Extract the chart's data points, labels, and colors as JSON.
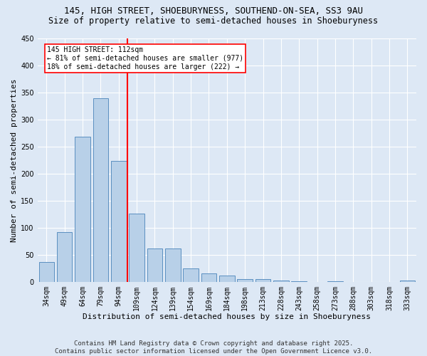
{
  "title_line1": "145, HIGH STREET, SHOEBURYNESS, SOUTHEND-ON-SEA, SS3 9AU",
  "title_line2": "Size of property relative to semi-detached houses in Shoeburyness",
  "xlabel": "Distribution of semi-detached houses by size in Shoeburyness",
  "ylabel": "Number of semi-detached properties",
  "categories": [
    "34sqm",
    "49sqm",
    "64sqm",
    "79sqm",
    "94sqm",
    "109sqm",
    "124sqm",
    "139sqm",
    "154sqm",
    "169sqm",
    "184sqm",
    "198sqm",
    "213sqm",
    "228sqm",
    "243sqm",
    "258sqm",
    "273sqm",
    "288sqm",
    "303sqm",
    "318sqm",
    "333sqm"
  ],
  "values": [
    37,
    92,
    268,
    340,
    224,
    126,
    62,
    62,
    25,
    16,
    11,
    5,
    5,
    2,
    1,
    0,
    1,
    0,
    0,
    0,
    2
  ],
  "bar_color": "#b8d0e8",
  "bar_edge_color": "#5a8fc0",
  "marker_bin_index": 5,
  "marker_label_line1": "145 HIGH STREET: 112sqm",
  "marker_label_line2": "← 81% of semi-detached houses are smaller (977)",
  "marker_label_line3": "18% of semi-detached houses are larger (222) →",
  "marker_color": "red",
  "ylim": [
    0,
    450
  ],
  "yticks": [
    0,
    50,
    100,
    150,
    200,
    250,
    300,
    350,
    400,
    450
  ],
  "bg_color": "#dde8f5",
  "grid_color": "#ffffff",
  "footer_line1": "Contains HM Land Registry data © Crown copyright and database right 2025.",
  "footer_line2": "Contains public sector information licensed under the Open Government Licence v3.0.",
  "title_fontsize": 9,
  "subtitle_fontsize": 8.5,
  "axis_label_fontsize": 8,
  "tick_fontsize": 7,
  "annot_fontsize": 7,
  "footer_fontsize": 6.5
}
